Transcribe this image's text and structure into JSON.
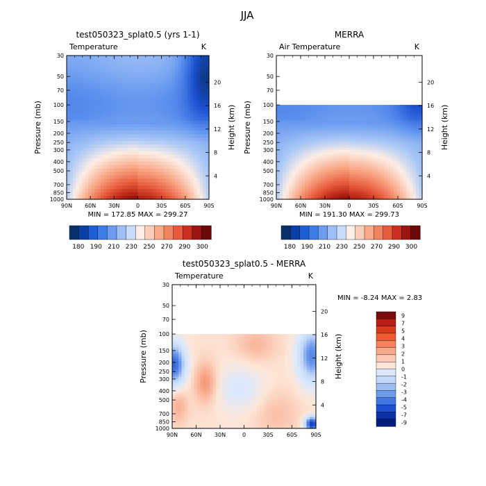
{
  "figure": {
    "title": "JJA"
  },
  "chart_data": [
    {
      "type": "heatmap",
      "title": "test050323_splat0.5 (yrs 1-1)",
      "variable": "Temperature",
      "units": "K",
      "xlabel": "",
      "ylabel": "Pressure (mb)",
      "ylabel_right": "Height (km)",
      "x_ticks": [
        "90N",
        "60N",
        "30N",
        "0",
        "30S",
        "60S",
        "90S"
      ],
      "y_ticks": [
        "30",
        "50",
        "70",
        "100",
        "150",
        "200",
        "250",
        "300",
        "400",
        "500",
        "700",
        "850",
        "1000"
      ],
      "height_ticks": [
        "20",
        "16",
        "12",
        "8",
        "4"
      ],
      "data_top_mb": 30,
      "min": 172.85,
      "max": 299.27,
      "stats_text": "MIN = 172.85   MAX = 299.27",
      "colorbar": {
        "labels": [
          "180",
          "190",
          "210",
          "230",
          "250",
          "270",
          "290",
          "300"
        ],
        "colors": [
          "#08306b",
          "#0a3fa8",
          "#1f5fd6",
          "#3e7ce8",
          "#6b9cf0",
          "#9dbff5",
          "#c7dbfa",
          "#fdeee6",
          "#fbcdb6",
          "#f8a988",
          "#f2835f",
          "#e85a3c",
          "#c9301e",
          "#9a1410",
          "#6a0a0a"
        ]
      }
    },
    {
      "type": "heatmap",
      "title": "MERRA",
      "variable": "Air Temperature",
      "units": "K",
      "xlabel": "",
      "ylabel": "Pressure (mb)",
      "ylabel_right": "Height (km)",
      "x_ticks": [
        "90N",
        "60N",
        "30N",
        "0",
        "30S",
        "60S",
        "90S"
      ],
      "y_ticks": [
        "30",
        "50",
        "70",
        "100",
        "150",
        "200",
        "250",
        "300",
        "400",
        "500",
        "700",
        "850",
        "1000"
      ],
      "height_ticks": [
        "20",
        "16",
        "12",
        "8",
        "4"
      ],
      "data_top_mb": 100,
      "min": 191.3,
      "max": 299.73,
      "stats_text": "MIN = 191.30   MAX = 299.73",
      "colorbar": {
        "labels": [
          "180",
          "190",
          "210",
          "230",
          "250",
          "270",
          "290",
          "300"
        ],
        "colors": [
          "#08306b",
          "#0a3fa8",
          "#1f5fd6",
          "#3e7ce8",
          "#6b9cf0",
          "#9dbff5",
          "#c7dbfa",
          "#fdeee6",
          "#fbcdb6",
          "#f8a988",
          "#f2835f",
          "#e85a3c",
          "#c9301e",
          "#9a1410",
          "#6a0a0a"
        ]
      }
    },
    {
      "type": "heatmap",
      "title": "test050323_splat0.5 - MERRA",
      "variable": "Temperature",
      "units": "K",
      "xlabel": "",
      "ylabel": "Pressure (mb)",
      "ylabel_right": "Height (km)",
      "x_ticks": [
        "90N",
        "60N",
        "30N",
        "0",
        "30S",
        "60S",
        "90S"
      ],
      "y_ticks": [
        "30",
        "50",
        "70",
        "100",
        "150",
        "200",
        "250",
        "300",
        "400",
        "500",
        "700",
        "850",
        "1000"
      ],
      "height_ticks": [
        "20",
        "16",
        "12",
        "8",
        "4"
      ],
      "data_top_mb": 100,
      "min": -8.24,
      "max": 2.83,
      "stats_text": "MIN =   -8.24   MAX =    2.83",
      "colorbar": {
        "labels": [
          "9",
          "7",
          "5",
          "4",
          "3",
          "2",
          "1",
          "0",
          "-1",
          "-2",
          "-3",
          "-4",
          "-5",
          "-7",
          "-9"
        ],
        "colors": [
          "#7a0d0d",
          "#b81e12",
          "#d83a1e",
          "#ee5a32",
          "#f5825c",
          "#f9a88a",
          "#fbc9b2",
          "#fde6d8",
          "#dce9fb",
          "#c2d8f8",
          "#9dbdf3",
          "#6f9bec",
          "#4276e2",
          "#1c50d2",
          "#0a2fa6",
          "#061d80"
        ]
      }
    }
  ]
}
